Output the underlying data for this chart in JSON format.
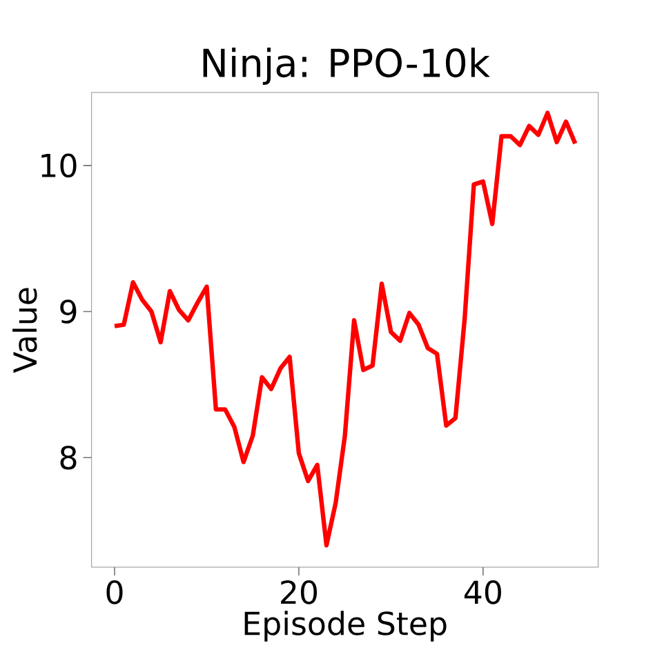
{
  "chart_data": {
    "type": "line",
    "title": "Ninja: PPO-10k",
    "xlabel": "Episode Step",
    "ylabel": "Value",
    "x": [
      0,
      1,
      2,
      3,
      4,
      5,
      6,
      7,
      8,
      9,
      10,
      11,
      12,
      13,
      14,
      15,
      16,
      17,
      18,
      19,
      20,
      21,
      22,
      23,
      24,
      25,
      26,
      27,
      28,
      29,
      30,
      31,
      32,
      33,
      34,
      35,
      36,
      37,
      38,
      39,
      40,
      41,
      42,
      43,
      44,
      45,
      46,
      47,
      48,
      49,
      50
    ],
    "series": [
      {
        "color": "#ff0000",
        "values": [
          8.9,
          8.91,
          9.2,
          9.08,
          9.0,
          8.79,
          9.14,
          9.01,
          8.94,
          9.06,
          9.17,
          8.33,
          8.33,
          8.21,
          7.97,
          8.15,
          8.55,
          8.47,
          8.61,
          8.69,
          8.03,
          7.84,
          7.95,
          7.4,
          7.69,
          8.15,
          8.94,
          8.6,
          8.63,
          9.19,
          8.86,
          8.8,
          8.99,
          8.91,
          8.75,
          8.71,
          8.22,
          8.27,
          8.95,
          9.87,
          9.89,
          9.6,
          10.2,
          10.2,
          10.14,
          10.27,
          10.21,
          10.36,
          10.16,
          10.3,
          10.15
        ]
      }
    ],
    "xlim": [
      -2.5,
      52.5
    ],
    "ylim": [
      7.25,
      10.5
    ],
    "xticks": [
      0,
      20,
      40
    ],
    "yticks": [
      8,
      9,
      10
    ],
    "grid": false,
    "marker": "none",
    "line_style": "solid"
  }
}
